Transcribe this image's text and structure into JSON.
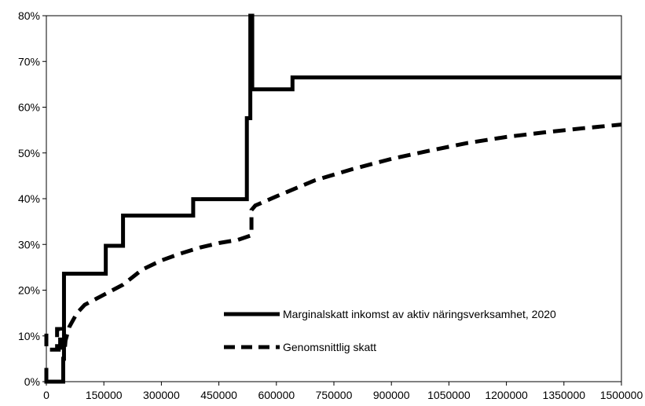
{
  "chart_data": {
    "type": "line",
    "title": "",
    "xlabel": "",
    "ylabel": "",
    "xlim": [
      0,
      1500000
    ],
    "ylim": [
      0,
      0.8
    ],
    "x_ticks": [
      0,
      150000,
      300000,
      450000,
      600000,
      750000,
      900000,
      1050000,
      1200000,
      1350000,
      1500000
    ],
    "x_tick_labels": [
      "0",
      "150000",
      "300000",
      "450000",
      "600000",
      "750000",
      "900000",
      "1050000",
      "1200000",
      "1350000",
      "1500000"
    ],
    "y_ticks": [
      0,
      0.1,
      0.2,
      0.3,
      0.4,
      0.5,
      0.6,
      0.7,
      0.8
    ],
    "y_tick_labels": [
      "0%",
      "10%",
      "20%",
      "30%",
      "40%",
      "50%",
      "60%",
      "70%",
      "80%"
    ],
    "grid": false,
    "legend_position": "bottom-right",
    "series": [
      {
        "name": "Marginalskatt inkomst av aktiv näringsverksamhet, 2020",
        "style": "solid",
        "color": "#000000",
        "points": [
          [
            0,
            0.03
          ],
          [
            0,
            0.0
          ],
          [
            44000,
            0.0
          ],
          [
            44000,
            0.05
          ],
          [
            46000,
            0.05
          ],
          [
            46000,
            0.236
          ],
          [
            155000,
            0.236
          ],
          [
            155000,
            0.297
          ],
          [
            200000,
            0.297
          ],
          [
            200000,
            0.363
          ],
          [
            383000,
            0.363
          ],
          [
            383000,
            0.399
          ],
          [
            523000,
            0.399
          ],
          [
            523000,
            0.576
          ],
          [
            532000,
            0.576
          ],
          [
            532000,
            0.8
          ],
          [
            537000,
            0.8
          ],
          [
            537000,
            0.639
          ],
          [
            642000,
            0.639
          ],
          [
            642000,
            0.665
          ],
          [
            1500000,
            0.665
          ]
        ]
      },
      {
        "name": "Genomsnittlig skatt",
        "style": "dashed",
        "color": "#000000",
        "points": [
          [
            0,
            0.105
          ],
          [
            0,
            0.07
          ],
          [
            28000,
            0.07
          ],
          [
            28000,
            0.115
          ],
          [
            36000,
            0.115
          ],
          [
            36000,
            0.07
          ],
          [
            48000,
            0.07
          ],
          [
            50000,
            0.09
          ],
          [
            60000,
            0.12
          ],
          [
            80000,
            0.15
          ],
          [
            100000,
            0.168
          ],
          [
            150000,
            0.19
          ],
          [
            200000,
            0.212
          ],
          [
            250000,
            0.245
          ],
          [
            300000,
            0.265
          ],
          [
            350000,
            0.28
          ],
          [
            400000,
            0.293
          ],
          [
            450000,
            0.303
          ],
          [
            500000,
            0.31
          ],
          [
            535000,
            0.32
          ],
          [
            535000,
            0.375
          ],
          [
            545000,
            0.385
          ],
          [
            600000,
            0.405
          ],
          [
            700000,
            0.44
          ],
          [
            800000,
            0.465
          ],
          [
            900000,
            0.487
          ],
          [
            1000000,
            0.505
          ],
          [
            1100000,
            0.522
          ],
          [
            1200000,
            0.535
          ],
          [
            1300000,
            0.545
          ],
          [
            1400000,
            0.554
          ],
          [
            1500000,
            0.562
          ]
        ]
      }
    ]
  }
}
